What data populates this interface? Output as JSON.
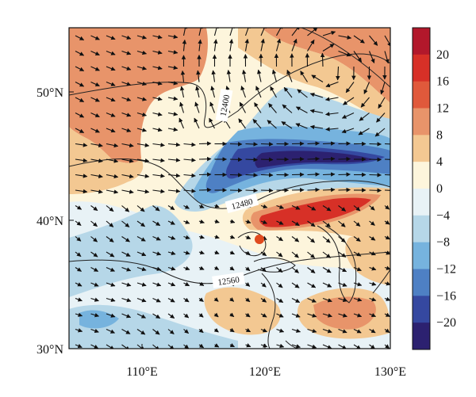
{
  "map": {
    "lat_labels": [
      "50°N",
      "40°N",
      "30°N"
    ],
    "lon_labels": [
      "110°E",
      "120°E",
      "130°E"
    ],
    "contour_labels": [
      "12400",
      "12480",
      "12560"
    ],
    "colorbar_labels": [
      "20",
      "16",
      "12",
      "8",
      "4",
      "0",
      "−4",
      "−8",
      "−12",
      "−16",
      "−20"
    ],
    "colorbar_colors": [
      "#b2182b",
      "#d73027",
      "#e0593b",
      "#e8946a",
      "#f3c892",
      "#fdf5dc",
      "#e8f2f6",
      "#b6d7e8",
      "#76b3de",
      "#4e80c4",
      "#3548a0",
      "#2c2170"
    ],
    "marker_color": "#e04a1e",
    "extent": {
      "lon": [
        105,
        130
      ],
      "lat": [
        30,
        55
      ]
    }
  }
}
